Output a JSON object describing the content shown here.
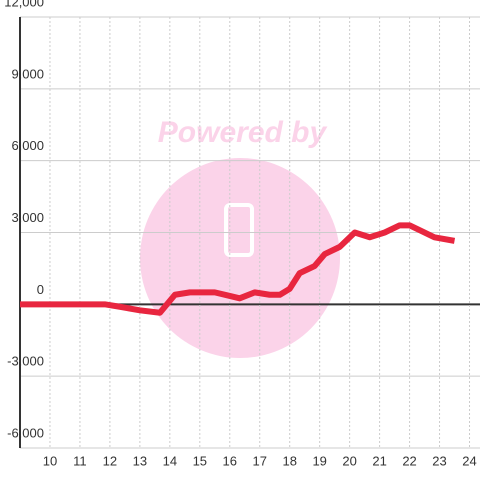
{
  "chart_data": {
    "type": "line",
    "watermark": "Powered by",
    "x": [
      9,
      10.5,
      11,
      11.83,
      12.33,
      13,
      13.67,
      14.17,
      14.67,
      15.5,
      16,
      16.33,
      16.83,
      17.33,
      17.67,
      18,
      18.33,
      18.83,
      19.17,
      19.67,
      20.17,
      20.67,
      21.17,
      21.67,
      22,
      22.33,
      22.83,
      23.5
    ],
    "series": [
      {
        "color": "#e8263f",
        "values": [
          0,
          0,
          0,
          0,
          -100,
          -250,
          -350,
          400,
          500,
          500,
          350,
          250,
          500,
          400,
          400,
          650,
          1300,
          1600,
          2100,
          2400,
          3000,
          2800,
          3000,
          3300,
          3300,
          3100,
          2800,
          2650
        ]
      }
    ],
    "xlim": [
      9,
      24.35
    ],
    "xticks": [
      10,
      11,
      12,
      13,
      14,
      15,
      16,
      17,
      18,
      19,
      20,
      21,
      22,
      23,
      24
    ],
    "ylim": [
      -6000,
      12000
    ],
    "yticks": [
      {
        "value": -6000,
        "label": "-6,000"
      },
      {
        "value": -3000,
        "label": "-3,000"
      },
      0,
      {
        "value": 3000,
        "label": "3,000"
      },
      {
        "value": 6000,
        "label": "6,000"
      },
      {
        "value": 9000,
        "label": "9,000"
      },
      {
        "value": 12000,
        "label": "12,000"
      }
    ],
    "grid": true
  }
}
